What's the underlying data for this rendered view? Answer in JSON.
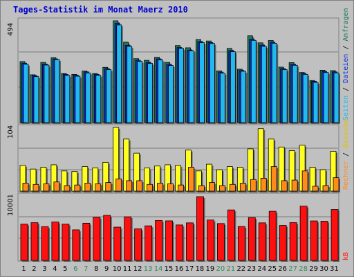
{
  "title": "Tages-Statistik im Monat Maerz 2010",
  "colors": {
    "anfragen": "#1f7a5a",
    "dateien": "#0a2fd8",
    "seiten": "#22b8f0",
    "besuche": "#ffff22",
    "rechner": "#ff8c1a",
    "kb": "#ff1010",
    "weekend_label": "#2e8b57",
    "weekday_label": "#000000"
  },
  "legend": {
    "anfragen": "Anfragen",
    "dateien": "Dateien",
    "seiten": "Seiten",
    "besuche": "Besuche",
    "rechner": "Rechner",
    "kb": "kB",
    "sep": " / "
  },
  "chart_data": [
    {
      "type": "bar",
      "name": "panel-top",
      "max_label": "494",
      "ymax": 494,
      "x": [
        1,
        2,
        3,
        4,
        5,
        6,
        7,
        8,
        9,
        10,
        11,
        12,
        13,
        14,
        15,
        16,
        17,
        18,
        19,
        20,
        21,
        22,
        23,
        24,
        25,
        26,
        27,
        28,
        29,
        30,
        31
      ],
      "weekend": [
        6,
        7,
        13,
        14,
        20,
        21,
        27,
        28
      ],
      "series": [
        {
          "name": "Anfragen",
          "values": [
            296,
            232,
            292,
            315,
            238,
            234,
            250,
            238,
            268,
            494,
            390,
            310,
            302,
            317,
            292,
            374,
            363,
            403,
            396,
            251,
            360,
            259,
            421,
            387,
            398,
            269,
            291,
            243,
            204,
            254,
            252
          ]
        },
        {
          "name": "Dateien",
          "values": [
            288,
            228,
            284,
            309,
            234,
            230,
            246,
            234,
            262,
            482,
            375,
            302,
            292,
            309,
            283,
            364,
            352,
            393,
            388,
            245,
            350,
            253,
            405,
            376,
            390,
            262,
            283,
            239,
            200,
            248,
            246
          ]
        },
        {
          "name": "Seiten",
          "values": [
            283,
            223,
            279,
            306,
            229,
            225,
            241,
            229,
            257,
            474,
            370,
            297,
            287,
            304,
            277,
            360,
            348,
            388,
            384,
            240,
            344,
            249,
            399,
            370,
            385,
            257,
            278,
            234,
            195,
            243,
            241
          ]
        }
      ]
    },
    {
      "type": "bar",
      "name": "panel-mid",
      "max_label": "104",
      "ymax": 104,
      "x": [
        1,
        2,
        3,
        4,
        5,
        6,
        7,
        8,
        9,
        10,
        11,
        12,
        13,
        14,
        15,
        16,
        17,
        18,
        19,
        20,
        21,
        22,
        23,
        24,
        25,
        26,
        27,
        28,
        29,
        30,
        31
      ],
      "series": [
        {
          "name": "Besuche",
          "values": [
            42,
            36,
            39,
            43,
            33,
            32,
            40,
            38,
            47,
            104,
            85,
            62,
            38,
            41,
            43,
            42,
            67,
            33,
            44,
            35,
            40,
            39,
            69,
            102,
            85,
            72,
            66,
            75,
            39,
            35,
            65
          ]
        },
        {
          "name": "Rechner",
          "values": [
            13,
            11,
            12,
            15,
            9,
            10,
            13,
            12,
            14,
            20,
            17,
            17,
            11,
            13,
            12,
            10,
            39,
            9,
            14,
            9,
            11,
            13,
            19,
            21,
            40,
            17,
            18,
            33,
            8,
            9,
            22
          ]
        }
      ]
    },
    {
      "type": "bar",
      "name": "panel-bottom",
      "max_label": "10001",
      "ymax": 10001,
      "x": [
        1,
        2,
        3,
        4,
        5,
        6,
        7,
        8,
        9,
        10,
        11,
        12,
        13,
        14,
        15,
        16,
        17,
        18,
        19,
        20,
        21,
        22,
        23,
        24,
        25,
        26,
        27,
        28,
        29,
        30,
        31
      ],
      "series": [
        {
          "name": "kB",
          "values": [
            5700,
            5920,
            5300,
            6030,
            5700,
            4790,
            5830,
            6780,
            7070,
            5220,
            6840,
            4960,
            5420,
            6260,
            6200,
            5560,
            5890,
            10001,
            6340,
            5780,
            7920,
            5330,
            6720,
            5890,
            7710,
            5480,
            5930,
            8520,
            6190,
            6140,
            7980
          ]
        }
      ]
    }
  ]
}
